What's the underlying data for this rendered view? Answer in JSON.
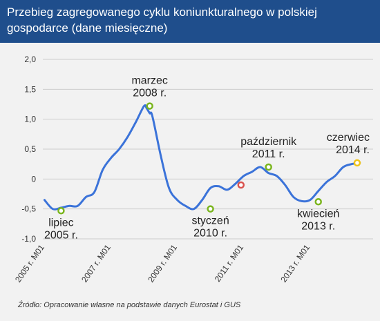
{
  "title": "Przebieg zagregowanego cyklu koniunkturalnego w polskiej gospodarce (dane miesięczne)",
  "source": "Źródło: Opracowanie własne na podstawie danych Eurostat i GUS",
  "colors": {
    "header": "#1f4e8c",
    "line": "#3b73d9",
    "marker_green": "#7ab51d",
    "marker_red": "#d9534f",
    "marker_yellow": "#f0c419",
    "grid": "#cccccc"
  },
  "chart_data": {
    "type": "line",
    "title": "Przebieg zagregowanego cyklu koniunkturalnego w polskiej gospodarce (dane miesięczne)",
    "xlabel": "",
    "ylabel": "",
    "ylim": [
      -1.0,
      2.0
    ],
    "yticks": [
      "2,0",
      "1,5",
      "1,0",
      "0,5",
      "0",
      "-0,5",
      "-1,0"
    ],
    "ytick_values": [
      2.0,
      1.5,
      1.0,
      0.5,
      0,
      -0.5,
      -1.0
    ],
    "xticks": [
      "2005 r. M01",
      "2007 r. M01",
      "2009 r. M01",
      "2011 r. M01",
      "2013 r. M01"
    ],
    "xtick_values": [
      2005,
      2007,
      2009,
      2011,
      2013
    ],
    "grid": "horizontal",
    "series": [
      {
        "x": [
          2005.0,
          2005.25,
          2005.5,
          2005.75,
          2006.0,
          2006.25,
          2006.5,
          2006.75,
          2007.0,
          2007.25,
          2007.5,
          2007.75,
          2008.0,
          2008.08,
          2008.17,
          2008.25,
          2008.5,
          2008.75,
          2009.0,
          2009.25,
          2009.5,
          2009.75,
          2010.0,
          2010.25,
          2010.5,
          2010.75,
          2011.0,
          2011.25,
          2011.5,
          2011.75,
          2012.0,
          2012.25,
          2012.5,
          2012.75,
          2013.0,
          2013.25,
          2013.5,
          2013.75,
          2014.0,
          2014.25,
          2014.5
        ],
        "y": [
          -0.35,
          -0.5,
          -0.48,
          -0.45,
          -0.45,
          -0.3,
          -0.22,
          0.15,
          0.35,
          0.5,
          0.7,
          0.95,
          1.22,
          1.18,
          1.1,
          1.05,
          0.4,
          -0.15,
          -0.35,
          -0.45,
          -0.5,
          -0.35,
          -0.15,
          -0.12,
          -0.18,
          -0.08,
          0.05,
          0.12,
          0.2,
          0.1,
          0.05,
          -0.1,
          -0.3,
          -0.37,
          -0.35,
          -0.2,
          -0.05,
          0.05,
          0.2,
          0.25,
          0.27
        ]
      }
    ],
    "annotations": [
      {
        "label": [
          "lipiec",
          "2005 r."
        ],
        "x": 2005.5,
        "y": -0.53,
        "marker": "green",
        "placement": "below"
      },
      {
        "label": [
          "marzec",
          "2008 r."
        ],
        "x": 2008.17,
        "y": 1.22,
        "marker": "green",
        "placement": "above"
      },
      {
        "label": [
          "styczeń",
          "2010 r."
        ],
        "x": 2010.0,
        "y": -0.5,
        "marker": "green",
        "placement": "below"
      },
      {
        "label": [],
        "x": 2010.92,
        "y": -0.1,
        "marker": "red",
        "placement": "none"
      },
      {
        "label": [
          "październik",
          "2011 r."
        ],
        "x": 2011.75,
        "y": 0.2,
        "marker": "green",
        "placement": "above"
      },
      {
        "label": [
          "kwiecień",
          "2013 r."
        ],
        "x": 2013.25,
        "y": -0.38,
        "marker": "green",
        "placement": "below"
      },
      {
        "label": [
          "czerwiec",
          "2014 r."
        ],
        "x": 2014.42,
        "y": 0.27,
        "marker": "yellow",
        "placement": "above"
      }
    ]
  }
}
